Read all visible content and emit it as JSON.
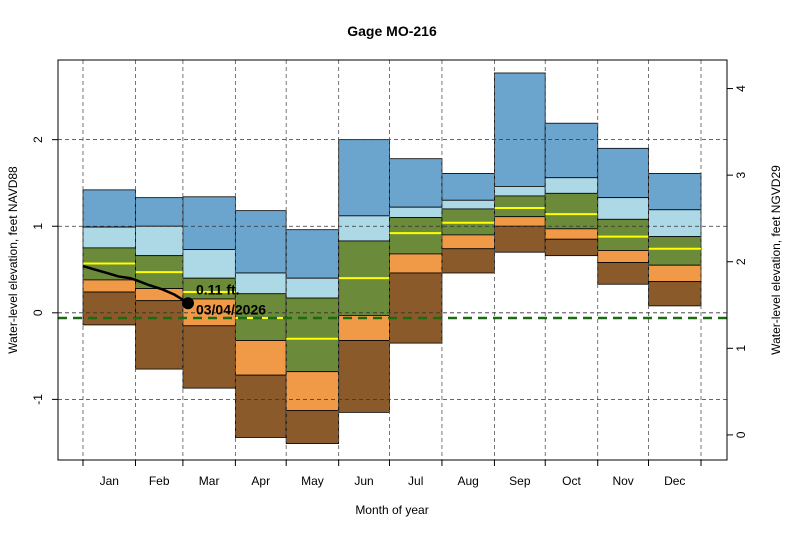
{
  "chart_data": {
    "type": "area",
    "title": "Gage MO-216",
    "xlabel": "Month of year",
    "ylabel": "Water-level elevation, feet NAVD88",
    "ylabel_right": "Water-level elevation, feet NGVD29",
    "datum_offset_ngvd29_minus_navd88": 1.41,
    "ylim": [
      -1.7,
      2.92
    ],
    "yticks_left": [
      -1,
      0,
      1,
      2
    ],
    "yticks_right": [
      0,
      1,
      2,
      3,
      4
    ],
    "grid": true,
    "categories": [
      "Jan",
      "Feb",
      "Mar",
      "Apr",
      "May",
      "Jun",
      "Jul",
      "Aug",
      "Sep",
      "Oct",
      "Nov",
      "Dec"
    ],
    "month_start_days": [
      1,
      32,
      60,
      91,
      121,
      152,
      182,
      213,
      244,
      274,
      305,
      335,
      366
    ],
    "bands": {
      "max": [
        1.42,
        1.33,
        1.34,
        1.18,
        0.96,
        2.0,
        1.78,
        1.61,
        2.77,
        2.19,
        1.9,
        1.61
      ],
      "p90": [
        0.99,
        1.0,
        0.73,
        0.46,
        0.4,
        1.12,
        1.22,
        1.3,
        1.46,
        1.56,
        1.33,
        1.19
      ],
      "p75": [
        0.75,
        0.66,
        0.4,
        0.22,
        0.17,
        0.83,
        1.1,
        1.2,
        1.35,
        1.38,
        1.08,
        0.88
      ],
      "median": [
        0.57,
        0.47,
        0.24,
        -0.06,
        -0.3,
        0.4,
        0.92,
        1.04,
        1.21,
        1.14,
        0.88,
        0.74
      ],
      "p25": [
        0.38,
        0.28,
        0.16,
        -0.32,
        -0.68,
        -0.03,
        0.68,
        0.9,
        1.11,
        0.97,
        0.72,
        0.55
      ],
      "p10": [
        0.24,
        0.14,
        -0.15,
        -0.72,
        -1.13,
        -0.32,
        0.46,
        0.74,
        1.0,
        0.85,
        0.58,
        0.36
      ],
      "min": [
        -0.14,
        -0.65,
        -0.87,
        -1.44,
        -1.51,
        -1.15,
        -0.35,
        0.46,
        0.7,
        0.66,
        0.33,
        0.08
      ]
    },
    "band_colors": {
      "max_p90": "#6ba5cd",
      "p90_p75": "#add8e6",
      "p75_p25": "#6b8a3a",
      "p25_p10": "#f09a48",
      "p10_min": "#8b5a2b",
      "median": "#ffff00"
    },
    "current_series": {
      "color": "#000000",
      "day": [
        1,
        8,
        15,
        22,
        29,
        32,
        40,
        48,
        55,
        60,
        63
      ],
      "value": [
        0.54,
        0.5,
        0.46,
        0.42,
        0.4,
        0.38,
        0.32,
        0.27,
        0.21,
        0.15,
        0.11
      ]
    },
    "current_point": {
      "day": 63,
      "value": 0.11,
      "label_value": "0.11 ft.",
      "label_date": "03/04/2026"
    },
    "reference_line": {
      "value": -0.06,
      "color": "#1a6b12",
      "style": "dashed"
    }
  }
}
